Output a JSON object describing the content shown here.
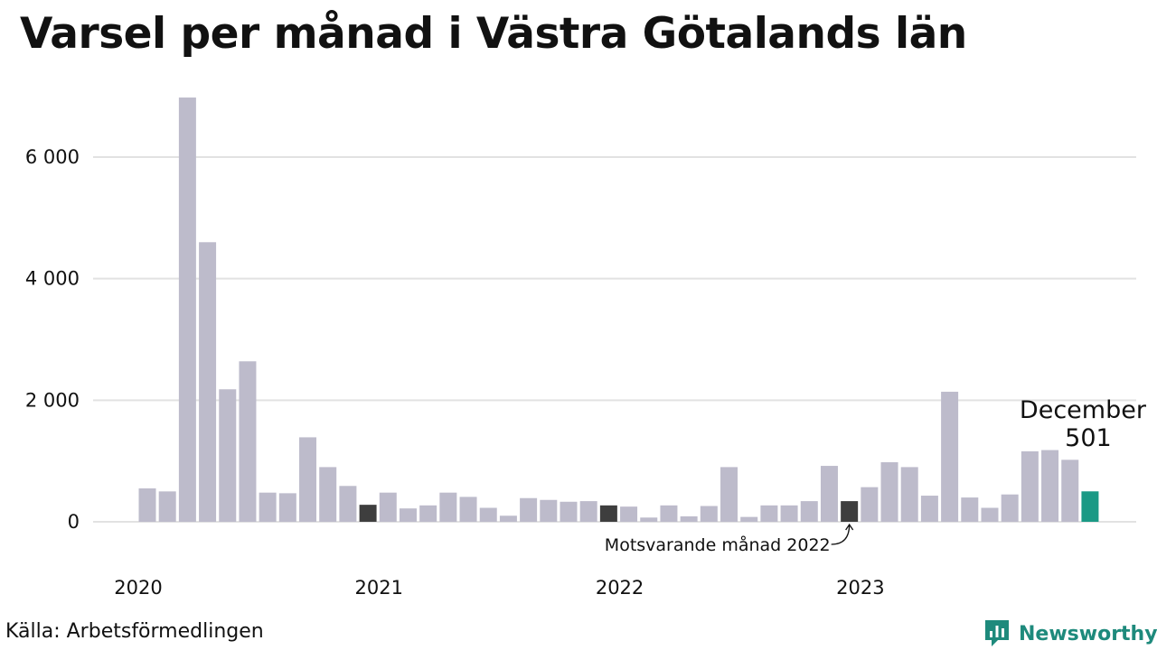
{
  "title": "Varsel per månad i Västra Götalands län",
  "source": "Källa: Arbetsförmedlingen",
  "logo": {
    "text": "Newsworthy",
    "icon": "newsworthy-logo-icon",
    "color": "#1e8a7c"
  },
  "colors": {
    "bar": "#bdbbcb",
    "comparison_bar": "#3e3e3e",
    "highlight_bar": "#1a9985",
    "grid": "#e2e2e2"
  },
  "chart_data": {
    "type": "bar",
    "title": "Varsel per månad i Västra Götalands län",
    "xlabel": "",
    "ylabel": "",
    "ylim": [
      0,
      7000
    ],
    "grid": true,
    "y_ticks": [
      0,
      2000,
      4000,
      6000
    ],
    "y_tick_labels": [
      "0",
      "2 000",
      "4 000",
      "6 000"
    ],
    "x_tick_labels": [
      "2020",
      "2021",
      "2022",
      "2023"
    ],
    "categories": [
      "2020-01",
      "2020-02",
      "2020-03",
      "2020-04",
      "2020-05",
      "2020-06",
      "2020-07",
      "2020-08",
      "2020-09",
      "2020-10",
      "2020-11",
      "2020-12",
      "2021-01",
      "2021-02",
      "2021-03",
      "2021-04",
      "2021-05",
      "2021-06",
      "2021-07",
      "2021-08",
      "2021-09",
      "2021-10",
      "2021-11",
      "2021-12",
      "2022-01",
      "2022-02",
      "2022-03",
      "2022-04",
      "2022-05",
      "2022-06",
      "2022-07",
      "2022-08",
      "2022-09",
      "2022-10",
      "2022-11",
      "2022-12",
      "2023-01",
      "2023-02",
      "2023-03",
      "2023-04",
      "2023-05",
      "2023-06",
      "2023-07",
      "2023-08",
      "2023-09",
      "2023-10",
      "2023-11",
      "2023-12"
    ],
    "values": [
      550,
      500,
      6980,
      4600,
      2180,
      2640,
      480,
      470,
      1390,
      900,
      590,
      280,
      480,
      220,
      270,
      480,
      410,
      230,
      100,
      390,
      360,
      330,
      340,
      270,
      250,
      70,
      270,
      90,
      260,
      900,
      80,
      270,
      270,
      340,
      920,
      340,
      570,
      980,
      900,
      430,
      2140,
      400,
      230,
      450,
      1160,
      1180,
      1020,
      501
    ],
    "highlight": {
      "category": "2023-12",
      "label": "December",
      "value_label": "501"
    },
    "comparison": {
      "categories": [
        "2020-12",
        "2021-12",
        "2022-12"
      ],
      "label": "Motsvarande månad 2022"
    }
  }
}
